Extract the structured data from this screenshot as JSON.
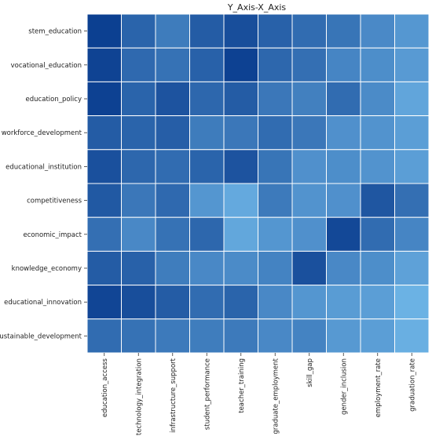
{
  "chart_data": {
    "type": "heatmap",
    "title": "Y_Axis-X_Axis",
    "xlabel": "",
    "ylabel": "",
    "x_categories": [
      "education_access",
      "technology_integration",
      "infrastructure_support",
      "student_performance",
      "teacher_training",
      "graduate_employment",
      "skill_gap",
      "gender_inclusion",
      "employment_rate",
      "graduation_rate"
    ],
    "y_categories": [
      "stem_education",
      "vocational_education",
      "education_policy",
      "workforce_development",
      "educational_institution",
      "competitiveness",
      "economic_impact",
      "knowledge_economy",
      "educational_innovation",
      "sustainable_development"
    ],
    "values": [
      [
        0.98,
        0.72,
        0.55,
        0.78,
        0.88,
        0.74,
        0.66,
        0.6,
        0.45,
        0.35
      ],
      [
        0.96,
        0.68,
        0.62,
        0.74,
        0.97,
        0.7,
        0.64,
        0.48,
        0.42,
        0.33
      ],
      [
        0.97,
        0.72,
        0.84,
        0.7,
        0.78,
        0.58,
        0.52,
        0.66,
        0.44,
        0.25
      ],
      [
        0.78,
        0.72,
        0.76,
        0.55,
        0.58,
        0.66,
        0.58,
        0.4,
        0.38,
        0.3
      ],
      [
        0.86,
        0.7,
        0.66,
        0.72,
        0.84,
        0.6,
        0.4,
        0.42,
        0.38,
        0.3
      ],
      [
        0.8,
        0.58,
        0.68,
        0.36,
        0.22,
        0.56,
        0.38,
        0.4,
        0.82,
        0.64
      ],
      [
        0.64,
        0.46,
        0.62,
        0.7,
        0.24,
        0.36,
        0.4,
        0.92,
        0.66,
        0.48
      ],
      [
        0.78,
        0.74,
        0.54,
        0.46,
        0.44,
        0.5,
        0.86,
        0.46,
        0.42,
        0.28
      ],
      [
        0.94,
        0.88,
        0.78,
        0.66,
        0.72,
        0.46,
        0.36,
        0.32,
        0.3,
        0.16
      ],
      [
        0.66,
        0.62,
        0.56,
        0.54,
        0.56,
        0.46,
        0.5,
        0.34,
        0.3,
        0.18
      ]
    ],
    "color_scale": {
      "low": "#7ec8f4",
      "high": "#0a3d8f"
    },
    "grid": false,
    "legend": "none"
  }
}
